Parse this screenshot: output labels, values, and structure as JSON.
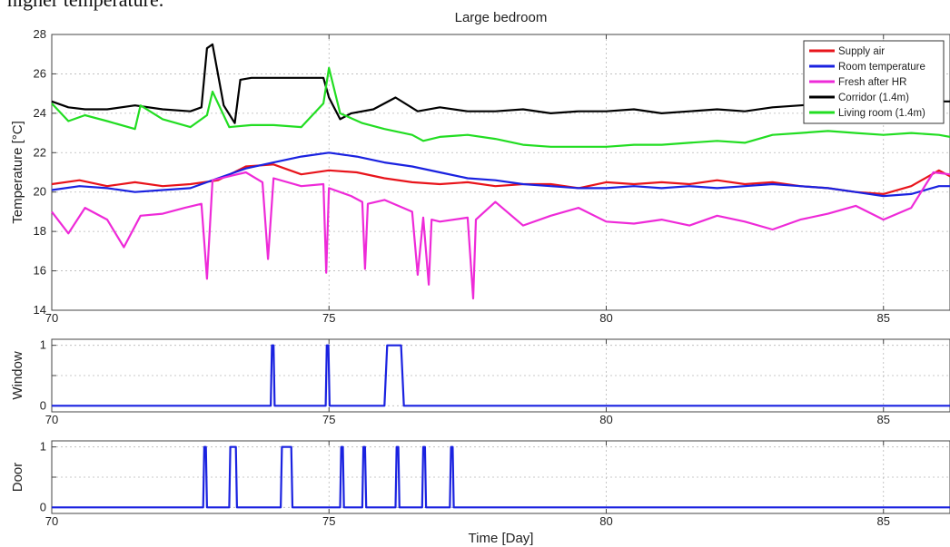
{
  "page": {
    "top_text_fragment": "higher temperature."
  },
  "colors": {
    "supply_air": "#e8141b",
    "room_temperature": "#1a22e0",
    "fresh_after_hr": "#ee2ad8",
    "corridor": "#000000",
    "living_room": "#22dd22",
    "window": "#1a22e0",
    "door": "#1a22e0"
  },
  "chart_data": [
    {
      "type": "line",
      "title": "Large bedroom",
      "xlabel": "",
      "ylabel": "Temperature [°C]",
      "xlim": [
        70,
        86.2
      ],
      "ylim": [
        14,
        28
      ],
      "xticks": [
        70,
        75,
        80,
        85
      ],
      "yticks": [
        14,
        16,
        18,
        20,
        22,
        24,
        26,
        28
      ],
      "grid": true,
      "legend_position": "top-right",
      "series": [
        {
          "name": "Supply air",
          "color_key": "supply_air",
          "x": [
            70,
            70.5,
            71,
            71.5,
            72,
            72.5,
            73,
            73.5,
            74,
            74.5,
            75,
            75.5,
            76,
            76.5,
            77,
            77.5,
            78,
            78.5,
            79,
            79.5,
            80,
            80.5,
            81,
            81.5,
            82,
            82.5,
            83,
            83.5,
            84,
            84.5,
            85,
            85.5,
            86,
            86.2
          ],
          "y": [
            20.4,
            20.6,
            20.3,
            20.5,
            20.3,
            20.4,
            20.6,
            21.3,
            21.4,
            20.9,
            21.1,
            21.0,
            20.7,
            20.5,
            20.4,
            20.5,
            20.3,
            20.4,
            20.4,
            20.2,
            20.5,
            20.4,
            20.5,
            20.4,
            20.6,
            20.4,
            20.5,
            20.3,
            20.2,
            20.0,
            19.9,
            20.3,
            21.1,
            20.8
          ]
        },
        {
          "name": "Room temperature",
          "color_key": "room_temperature",
          "x": [
            70,
            70.5,
            71,
            71.5,
            72,
            72.5,
            73,
            73.5,
            74,
            74.5,
            75,
            75.5,
            76,
            76.5,
            77,
            77.5,
            78,
            78.5,
            79,
            79.5,
            80,
            80.5,
            81,
            81.5,
            82,
            82.5,
            83,
            83.5,
            84,
            84.5,
            85,
            85.5,
            86,
            86.2
          ],
          "y": [
            20.1,
            20.3,
            20.2,
            20.0,
            20.1,
            20.2,
            20.7,
            21.2,
            21.5,
            21.8,
            22.0,
            21.8,
            21.5,
            21.3,
            21.0,
            20.7,
            20.6,
            20.4,
            20.3,
            20.2,
            20.2,
            20.3,
            20.2,
            20.3,
            20.2,
            20.3,
            20.4,
            20.3,
            20.2,
            20.0,
            19.8,
            19.9,
            20.3,
            20.3
          ]
        },
        {
          "name": "Fresh after HR",
          "color_key": "fresh_after_hr",
          "x": [
            70,
            70.3,
            70.6,
            71,
            71.3,
            71.6,
            72,
            72.4,
            72.7,
            72.8,
            72.9,
            73.2,
            73.5,
            73.8,
            73.9,
            74.0,
            74.5,
            74.9,
            74.95,
            75.0,
            75.4,
            75.6,
            75.65,
            75.7,
            76,
            76.5,
            76.6,
            76.7,
            76.8,
            76.85,
            77,
            77.5,
            77.6,
            77.65,
            78,
            78.5,
            79,
            79.5,
            80,
            80.5,
            81,
            81.5,
            82,
            82.5,
            83,
            83.5,
            84,
            84.5,
            85,
            85.5,
            85.9,
            86.2
          ],
          "y": [
            19.0,
            17.9,
            19.2,
            18.6,
            17.2,
            18.8,
            18.9,
            19.2,
            19.4,
            15.6,
            20.6,
            20.8,
            21.0,
            20.5,
            16.6,
            20.7,
            20.3,
            20.4,
            15.9,
            20.2,
            19.8,
            19.5,
            16.1,
            19.4,
            19.6,
            19.0,
            15.8,
            18.7,
            15.3,
            18.6,
            18.5,
            18.7,
            14.6,
            18.6,
            19.5,
            18.3,
            18.8,
            19.2,
            18.5,
            18.4,
            18.6,
            18.3,
            18.8,
            18.5,
            18.1,
            18.6,
            18.9,
            19.3,
            18.6,
            19.2,
            21.0,
            20.9
          ]
        },
        {
          "name": "Corridor (1.4m)",
          "color_key": "corridor",
          "x": [
            70,
            70.3,
            70.6,
            71,
            71.5,
            72,
            72.5,
            72.7,
            72.8,
            72.9,
            73.1,
            73.3,
            73.4,
            73.6,
            74,
            74.5,
            74.9,
            75.0,
            75.2,
            75.4,
            75.8,
            76.2,
            76.6,
            77,
            77.5,
            78,
            78.5,
            79,
            79.5,
            80,
            80.5,
            81,
            81.5,
            82,
            82.5,
            83,
            83.5,
            84,
            84.5,
            85,
            85.5,
            86,
            86.2
          ],
          "y": [
            24.6,
            24.3,
            24.2,
            24.2,
            24.4,
            24.2,
            24.1,
            24.3,
            27.3,
            27.5,
            24.4,
            23.5,
            25.7,
            25.8,
            25.8,
            25.8,
            25.8,
            24.8,
            23.7,
            24.0,
            24.2,
            24.8,
            24.1,
            24.3,
            24.1,
            24.1,
            24.2,
            24.0,
            24.1,
            24.1,
            24.2,
            24.0,
            24.1,
            24.2,
            24.1,
            24.3,
            24.4,
            24.5,
            24.7,
            24.4,
            24.5,
            24.6,
            24.6
          ]
        },
        {
          "name": "Living room (1.4m)",
          "color_key": "living_room",
          "x": [
            70,
            70.3,
            70.6,
            71,
            71.5,
            71.6,
            72,
            72.5,
            72.8,
            72.9,
            73.2,
            73.6,
            74,
            74.5,
            74.9,
            75.0,
            75.2,
            75.6,
            76,
            76.5,
            76.7,
            77,
            77.5,
            78,
            78.5,
            79,
            79.5,
            80,
            80.5,
            81,
            81.5,
            82,
            82.5,
            83,
            83.5,
            84,
            84.5,
            85,
            85.5,
            86,
            86.2
          ],
          "y": [
            24.5,
            23.6,
            23.9,
            23.6,
            23.2,
            24.4,
            23.7,
            23.3,
            23.9,
            25.1,
            23.3,
            23.4,
            23.4,
            23.3,
            24.5,
            26.3,
            24.0,
            23.5,
            23.2,
            22.9,
            22.6,
            22.8,
            22.9,
            22.7,
            22.4,
            22.3,
            22.3,
            22.3,
            22.4,
            22.4,
            22.5,
            22.6,
            22.5,
            22.9,
            23.0,
            23.1,
            23.0,
            22.9,
            23.0,
            22.9,
            22.8
          ]
        }
      ]
    },
    {
      "type": "line",
      "title": "",
      "xlabel": "",
      "ylabel": "Window",
      "xlim": [
        70,
        86.2
      ],
      "ylim": [
        -0.1,
        1.1
      ],
      "xticks": [
        70,
        75,
        80,
        85
      ],
      "yticks": [
        0,
        0.5,
        1
      ],
      "grid": true,
      "series": [
        {
          "name": "",
          "color_key": "window",
          "x": [
            70,
            73.95,
            73.97,
            74.0,
            74.02,
            74.94,
            74.96,
            74.99,
            75.01,
            76.0,
            76.05,
            76.3,
            76.35,
            86.2
          ],
          "y": [
            0,
            0,
            1,
            1,
            0,
            0,
            1,
            1,
            0,
            0,
            1,
            1,
            0,
            0
          ]
        }
      ]
    },
    {
      "type": "line",
      "title": "",
      "xlabel": "Time [Day]",
      "ylabel": "Door",
      "xlim": [
        70,
        86.2
      ],
      "ylim": [
        -0.1,
        1.1
      ],
      "xticks": [
        70,
        75,
        80,
        85
      ],
      "yticks": [
        0,
        0.5,
        1
      ],
      "grid": true,
      "series": [
        {
          "name": "",
          "color_key": "door",
          "x": [
            70,
            72.73,
            72.75,
            72.78,
            72.8,
            73.2,
            73.22,
            73.32,
            73.34,
            74.13,
            74.15,
            74.32,
            74.34,
            75.2,
            75.22,
            75.25,
            75.27,
            75.6,
            75.62,
            75.65,
            75.67,
            76.2,
            76.22,
            76.25,
            76.27,
            76.68,
            76.7,
            76.73,
            76.75,
            77.18,
            77.2,
            77.23,
            77.25,
            86.2
          ],
          "y": [
            0,
            0,
            1,
            1,
            0,
            0,
            1,
            1,
            0,
            0,
            1,
            1,
            0,
            0,
            1,
            1,
            0,
            0,
            1,
            1,
            0,
            0,
            1,
            1,
            0,
            0,
            1,
            1,
            0,
            0,
            1,
            1,
            0,
            0
          ]
        }
      ]
    }
  ]
}
